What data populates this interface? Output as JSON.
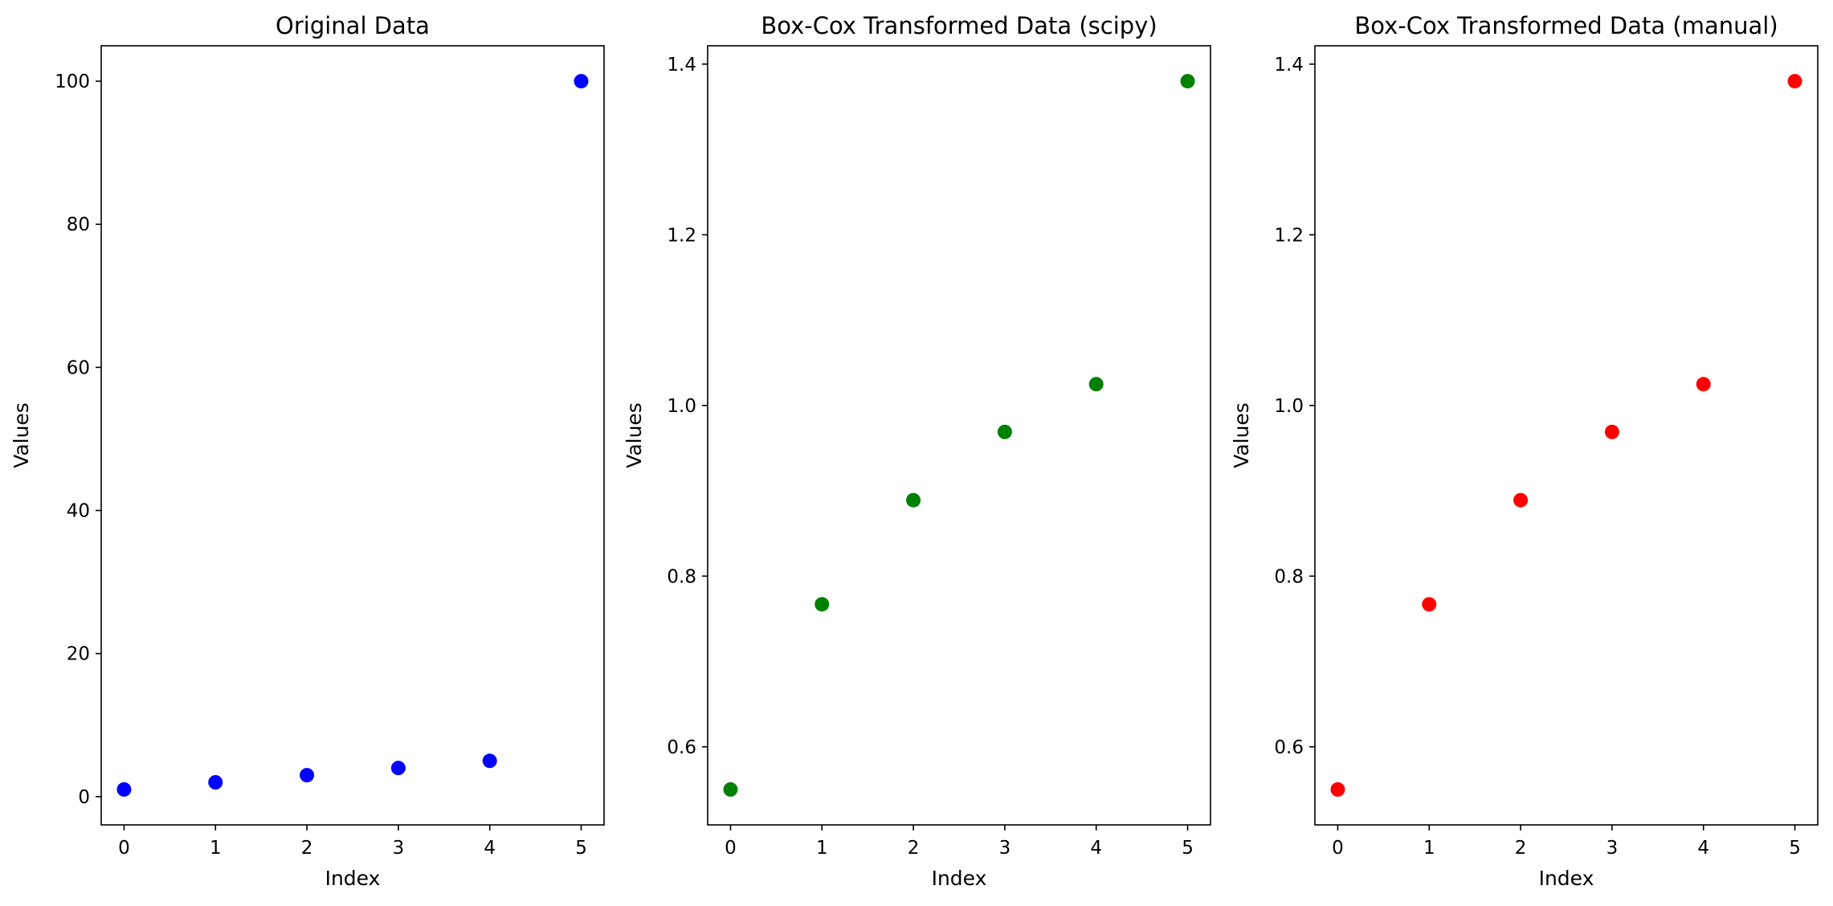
{
  "chart_data": [
    {
      "type": "scatter",
      "title": "Original Data",
      "xlabel": "Index",
      "ylabel": "Values",
      "color": "#0000ff",
      "x": [
        0,
        1,
        2,
        3,
        4,
        5
      ],
      "y": [
        1,
        2,
        3,
        4,
        5,
        100
      ],
      "xlim": [
        -0.25,
        5.25
      ],
      "ylim": [
        -3.95,
        104.95
      ],
      "xticks": [
        0,
        1,
        2,
        3,
        4,
        5
      ],
      "yticks": [
        0,
        20,
        40,
        60,
        80,
        100
      ],
      "ytick_labels": [
        "0",
        "20",
        "40",
        "60",
        "80",
        "100"
      ],
      "grid": false
    },
    {
      "type": "scatter",
      "title": "Box-Cox Transformed Data (scipy)",
      "xlabel": "Index",
      "ylabel": "Values",
      "color": "#008000",
      "x": [
        0,
        1,
        2,
        3,
        4,
        5
      ],
      "y": [
        0.55,
        0.767,
        0.889,
        0.969,
        1.025,
        1.38
      ],
      "xlim": [
        -0.25,
        5.25
      ],
      "ylim": [
        0.5085,
        1.4215
      ],
      "xticks": [
        0,
        1,
        2,
        3,
        4,
        5
      ],
      "yticks": [
        0.6,
        0.8,
        1.0,
        1.2,
        1.4
      ],
      "ytick_labels": [
        "0.6",
        "0.8",
        "1.0",
        "1.2",
        "1.4"
      ],
      "grid": false
    },
    {
      "type": "scatter",
      "title": "Box-Cox Transformed Data (manual)",
      "xlabel": "Index",
      "ylabel": "Values",
      "color": "#ff0000",
      "x": [
        0,
        1,
        2,
        3,
        4,
        5
      ],
      "y": [
        0.55,
        0.767,
        0.889,
        0.969,
        1.025,
        1.38
      ],
      "xlim": [
        -0.25,
        5.25
      ],
      "ylim": [
        0.5085,
        1.4215
      ],
      "xticks": [
        0,
        1,
        2,
        3,
        4,
        5
      ],
      "yticks": [
        0.6,
        0.8,
        1.0,
        1.2,
        1.4
      ],
      "ytick_labels": [
        "0.6",
        "0.8",
        "1.0",
        "1.2",
        "1.4"
      ],
      "grid": false
    }
  ]
}
